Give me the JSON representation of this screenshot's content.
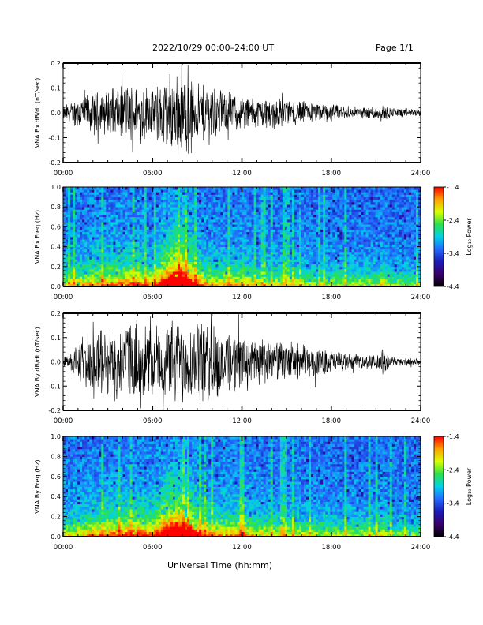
{
  "header": {
    "date_range": "2022/10/29  00:00–24:00 UT",
    "page": "Page 1/1"
  },
  "xaxis_title": "Universal Time (hh:mm)",
  "chart_data": [
    {
      "type": "line",
      "title": "",
      "ylabel": "VNA Bx dB/dt (nT/sec)",
      "xlim": [
        "00:00",
        "24:00"
      ],
      "ylim": [
        -0.2,
        0.2
      ],
      "x_ticks": [
        "00:00",
        "06:00",
        "12:00",
        "18:00",
        "24:00"
      ],
      "y_ticks": [
        "-0.2",
        "-0.1",
        "0.0",
        "0.1",
        "0.2"
      ],
      "envelope": {
        "x_hours": [
          0,
          1,
          2,
          3,
          4,
          5,
          6,
          7,
          7.5,
          8,
          8.5,
          9,
          10,
          11,
          12,
          13,
          14,
          15,
          16,
          17,
          18,
          19,
          20,
          21,
          21.5,
          22,
          23,
          24
        ],
        "amplitude": [
          0.03,
          0.07,
          0.09,
          0.1,
          0.12,
          0.13,
          0.11,
          0.17,
          0.2,
          0.2,
          0.16,
          0.13,
          0.12,
          0.09,
          0.08,
          0.07,
          0.07,
          0.06,
          0.05,
          0.05,
          0.04,
          0.03,
          0.025,
          0.03,
          0.04,
          0.02,
          0.02,
          0.015
        ]
      }
    },
    {
      "type": "heatmap",
      "title": "",
      "ylabel": "VNA Bx Freq (Hz)",
      "xlim": [
        "00:00",
        "24:00"
      ],
      "ylim": [
        0.0,
        1.0
      ],
      "x_ticks": [
        "00:00",
        "06:00",
        "12:00",
        "18:00",
        "24:00"
      ],
      "y_ticks": [
        "0.0",
        "0.2",
        "0.4",
        "0.6",
        "0.8",
        "1.0"
      ],
      "colorbar": {
        "label": "Log₁₀ Power",
        "range": [
          -4.4,
          -1.4
        ],
        "ticks": [
          "-1.4",
          "-2.4",
          "-3.4",
          "-4.4"
        ]
      },
      "color_stops": [
        "#000000",
        "#3a006a",
        "#1b1bb8",
        "#2468ff",
        "#00d2e8",
        "#2ee04a",
        "#d8ff00",
        "#ffa000",
        "#ff0000"
      ],
      "activity": {
        "x_hours": [
          0,
          2,
          4,
          5,
          6,
          7,
          7.5,
          8,
          8.5,
          9,
          10,
          11,
          12,
          13,
          15,
          18,
          21,
          21.5,
          22,
          24
        ],
        "level": [
          0.2,
          0.35,
          0.4,
          0.45,
          0.35,
          0.8,
          0.95,
          0.95,
          0.7,
          0.45,
          0.3,
          0.3,
          0.35,
          0.2,
          0.2,
          0.15,
          0.15,
          0.25,
          0.1,
          0.1
        ]
      }
    },
    {
      "type": "line",
      "title": "",
      "ylabel": "VNA By dB/dt (nT/sec)",
      "xlim": [
        "00:00",
        "24:00"
      ],
      "ylim": [
        -0.2,
        0.2
      ],
      "x_ticks": [
        "00:00",
        "06:00",
        "12:00",
        "18:00",
        "24:00"
      ],
      "y_ticks": [
        "-0.2",
        "-0.1",
        "0.0",
        "0.1",
        "0.2"
      ],
      "envelope": {
        "x_hours": [
          0,
          1,
          2,
          3,
          4,
          5,
          6,
          7,
          8,
          9,
          10,
          11,
          12,
          13,
          14,
          15,
          16,
          17,
          18,
          19,
          20,
          21,
          21.5,
          22,
          23,
          24
        ],
        "amplitude": [
          0.02,
          0.08,
          0.14,
          0.15,
          0.16,
          0.18,
          0.15,
          0.2,
          0.2,
          0.19,
          0.18,
          0.15,
          0.13,
          0.11,
          0.1,
          0.09,
          0.08,
          0.07,
          0.05,
          0.04,
          0.03,
          0.03,
          0.06,
          0.02,
          0.02,
          0.015
        ]
      }
    },
    {
      "type": "heatmap",
      "title": "",
      "ylabel": "VNA By Freq (Hz)",
      "xlim": [
        "00:00",
        "24:00"
      ],
      "ylim": [
        0.0,
        1.0
      ],
      "x_ticks": [
        "00:00",
        "06:00",
        "12:00",
        "18:00",
        "24:00"
      ],
      "y_ticks": [
        "0.0",
        "0.2",
        "0.4",
        "0.6",
        "0.8",
        "1.0"
      ],
      "colorbar": {
        "label": "Log₁₀ Power",
        "range": [
          -4.4,
          -1.4
        ],
        "ticks": [
          "-1.4",
          "-2.4",
          "-3.4",
          "-4.4"
        ]
      },
      "color_stops": [
        "#000000",
        "#3a006a",
        "#1b1bb8",
        "#2468ff",
        "#00d2e8",
        "#2ee04a",
        "#d8ff00",
        "#ffa000",
        "#ff0000"
      ],
      "activity": {
        "x_hours": [
          0,
          2,
          4,
          5,
          6,
          7,
          7.5,
          8,
          8.5,
          9,
          10,
          11,
          12,
          13,
          15,
          18,
          21,
          21.5,
          22,
          24
        ],
        "level": [
          0.2,
          0.35,
          0.45,
          0.5,
          0.4,
          0.8,
          0.9,
          0.9,
          0.75,
          0.5,
          0.35,
          0.35,
          0.4,
          0.25,
          0.2,
          0.15,
          0.15,
          0.25,
          0.1,
          0.1
        ]
      }
    }
  ]
}
